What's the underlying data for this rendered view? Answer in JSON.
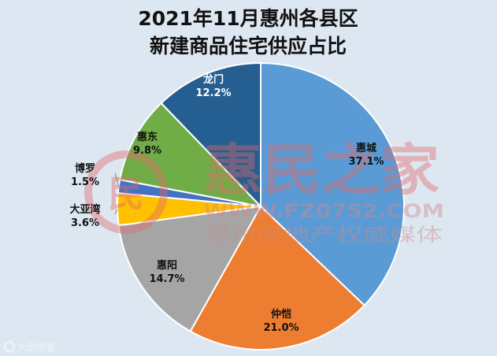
{
  "chart_data": {
    "type": "pie",
    "title_lines": [
      "2021年11月惠州各县区",
      "新建商品住宅供应占比"
    ],
    "slices": [
      {
        "name": "惠城",
        "value": 37.1,
        "label": "37.1%",
        "color": "#5b9bd5"
      },
      {
        "name": "仲恺",
        "value": 21.0,
        "label": "21.0%",
        "color": "#ed7d31"
      },
      {
        "name": "惠阳",
        "value": 14.7,
        "label": "14.7%",
        "color": "#a5a5a5"
      },
      {
        "name": "大亚湾",
        "value": 3.6,
        "label": "3.6%",
        "color": "#ffc000"
      },
      {
        "name": "博罗",
        "value": 1.5,
        "label": "1.5%",
        "color": "#4472c4"
      },
      {
        "name": "惠东",
        "value": 9.8,
        "label": "9.8%",
        "color": "#70ad47"
      },
      {
        "name": "龙门",
        "value": 12.2,
        "label": "12.2%",
        "color": "#255e91"
      }
    ]
  },
  "watermark": {
    "logo_text": "惠民之家",
    "url_text": "WWW.FZ0752.COM",
    "tagline": "惠州房地产权威媒体",
    "icon_glyph": "民"
  },
  "footer": {
    "logo_text": "大歌喷墨"
  }
}
